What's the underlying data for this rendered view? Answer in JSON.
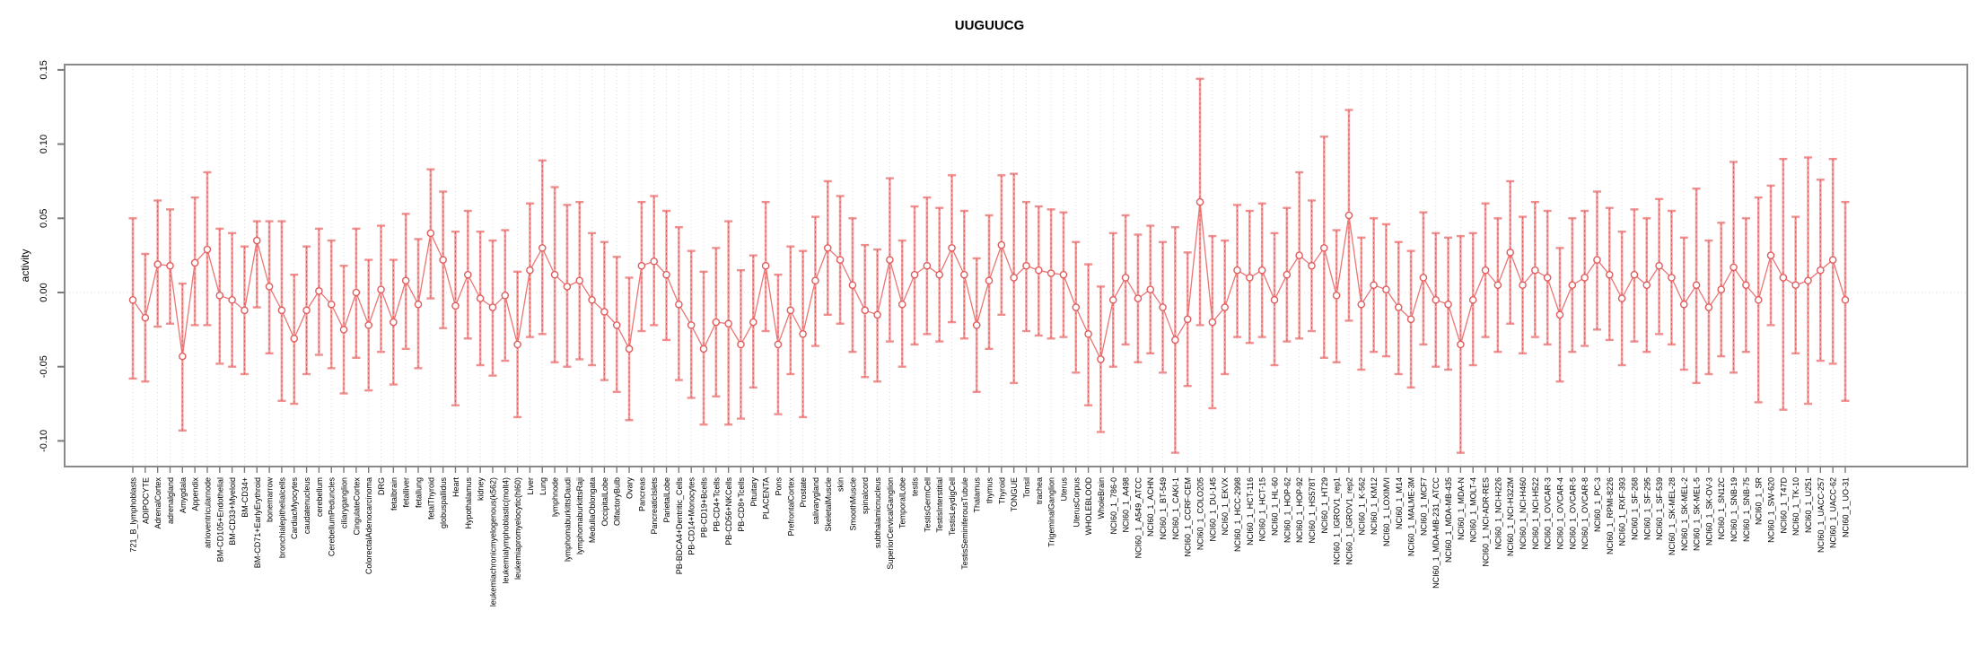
{
  "chart_data": {
    "type": "line",
    "title": "UUGUUCG",
    "xlabel": "",
    "ylabel": "activity",
    "ylim": [
      -0.118,
      0.155
    ],
    "grid": "dotted vertical gridline per category; dotted horizontal line at 0",
    "legend": "none",
    "error_bars": true,
    "point_format": [
      "label",
      "value",
      "lo",
      "hi"
    ],
    "yticks": [
      {
        "v": 0.15,
        "label": "0.15"
      },
      {
        "v": 0.1,
        "label": "0.10"
      },
      {
        "v": 0.05,
        "label": "0.05"
      },
      {
        "v": 0.0,
        "label": "0.00"
      },
      {
        "v": -0.05,
        "label": "-0.05"
      },
      {
        "v": -0.1,
        "label": "-0.10"
      }
    ],
    "points": [
      [
        "721_B_lymphoblasts",
        -0.005,
        -0.058,
        0.05
      ],
      [
        "ADIPOCYTE",
        -0.017,
        -0.06,
        0.026
      ],
      [
        "AdrenalCortex",
        0.019,
        -0.023,
        0.062
      ],
      [
        "adrenalgland",
        0.018,
        -0.021,
        0.056
      ],
      [
        "Amygdala",
        -0.043,
        -0.093,
        0.006
      ],
      [
        "Appendix",
        0.02,
        -0.022,
        0.064
      ],
      [
        "atrioventricularnode",
        0.029,
        -0.022,
        0.081
      ],
      [
        "BM-CD105+Endothelial",
        -0.002,
        -0.048,
        0.043
      ],
      [
        "BM-CD33+Myeloid",
        -0.005,
        -0.05,
        0.04
      ],
      [
        "BM-CD34+",
        -0.012,
        -0.055,
        0.031
      ],
      [
        "BM-CD71+EarlyErythroid",
        0.035,
        -0.01,
        0.048
      ],
      [
        "bonemarrow",
        0.004,
        -0.041,
        0.048
      ],
      [
        "bronchialepithelialcells",
        -0.012,
        -0.073,
        0.048
      ],
      [
        "CardiacMyocytes",
        -0.031,
        -0.075,
        0.012
      ],
      [
        "caudatenucleus",
        -0.012,
        -0.055,
        0.031
      ],
      [
        "cerebellum",
        0.001,
        -0.042,
        0.043
      ],
      [
        "CerebellumPeduncles",
        -0.008,
        -0.051,
        0.035
      ],
      [
        "ciliaryganglion",
        -0.025,
        -0.068,
        0.018
      ],
      [
        "CingulateCortex",
        0.0,
        -0.044,
        0.043
      ],
      [
        "ColorectalAdenocarcinoma",
        -0.022,
        -0.066,
        0.022
      ],
      [
        "DRG",
        0.002,
        -0.04,
        0.045
      ],
      [
        "fetalbrain",
        -0.02,
        -0.062,
        0.022
      ],
      [
        "fetalliver",
        0.008,
        -0.038,
        0.053
      ],
      [
        "fetallung",
        -0.008,
        -0.051,
        0.036
      ],
      [
        "fetalThyroid",
        0.04,
        -0.004,
        0.083
      ],
      [
        "globuspallidus",
        0.022,
        -0.024,
        0.068
      ],
      [
        "Heart",
        -0.009,
        -0.076,
        0.041
      ],
      [
        "Hypothalamus",
        0.012,
        -0.031,
        0.055
      ],
      [
        "kidney",
        -0.004,
        -0.049,
        0.041
      ],
      [
        "leukemiachronicmyelogenous(k562)",
        -0.01,
        -0.056,
        0.035
      ],
      [
        "leukemialymphoblastic(molt4)",
        -0.002,
        -0.046,
        0.042
      ],
      [
        "leukemiapromyelocytic(hl60)",
        -0.035,
        -0.084,
        0.014
      ],
      [
        "Liver",
        0.015,
        -0.03,
        0.06
      ],
      [
        "Lung",
        0.03,
        -0.028,
        0.089
      ],
      [
        "lymphnode",
        0.012,
        -0.047,
        0.071
      ],
      [
        "lymphomaburkittsDaudi",
        0.004,
        -0.05,
        0.059
      ],
      [
        "lymphomaburkittsRaji",
        0.008,
        -0.045,
        0.061
      ],
      [
        "MedullaOblongata",
        -0.005,
        -0.049,
        0.04
      ],
      [
        "OccipitalLobe",
        -0.013,
        -0.059,
        0.034
      ],
      [
        "OlfactoryBulb",
        -0.022,
        -0.067,
        0.024
      ],
      [
        "Ovary",
        -0.038,
        -0.086,
        0.01
      ],
      [
        "Pancreas",
        0.018,
        -0.026,
        0.061
      ],
      [
        "PancreaticIslets",
        0.021,
        -0.022,
        0.065
      ],
      [
        "ParietalLobe",
        0.012,
        -0.032,
        0.055
      ],
      [
        "PB-BDCA4+Dentritic_Cells",
        -0.008,
        -0.059,
        0.044
      ],
      [
        "PB-CD14+Monocytes",
        -0.022,
        -0.071,
        0.028
      ],
      [
        "PB-CD19+Bcells",
        -0.038,
        -0.089,
        0.014
      ],
      [
        "PB-CD4+Tcells",
        -0.02,
        -0.07,
        0.03
      ],
      [
        "PB-CD56+NKCells",
        -0.021,
        -0.089,
        0.048
      ],
      [
        "PB-CD8+Tcells",
        -0.035,
        -0.085,
        0.015
      ],
      [
        "Pituitary",
        -0.02,
        -0.064,
        0.025
      ],
      [
        "PLACENTA",
        0.018,
        -0.026,
        0.061
      ],
      [
        "Pons",
        -0.035,
        -0.082,
        0.012
      ],
      [
        "PrefrontalCortex",
        -0.012,
        -0.055,
        0.031
      ],
      [
        "Prostate",
        -0.028,
        -0.084,
        0.028
      ],
      [
        "salivarygland",
        0.008,
        -0.036,
        0.051
      ],
      [
        "SkeletalMuscle",
        0.03,
        -0.015,
        0.075
      ],
      [
        "skin",
        0.022,
        -0.021,
        0.065
      ],
      [
        "SmoothMuscle",
        0.005,
        -0.04,
        0.05
      ],
      [
        "spinalcord",
        -0.012,
        -0.057,
        0.032
      ],
      [
        "subthalamicnucleus",
        -0.015,
        -0.06,
        0.029
      ],
      [
        "SuperiorCervicalGanglion",
        0.022,
        -0.033,
        0.077
      ],
      [
        "TemporalLobe",
        -0.008,
        -0.05,
        0.035
      ],
      [
        "testis",
        0.012,
        -0.035,
        0.058
      ],
      [
        "TestisGermCell",
        0.018,
        -0.028,
        0.064
      ],
      [
        "TestisInterstitial",
        0.012,
        -0.033,
        0.057
      ],
      [
        "TestisLeydigCell",
        0.03,
        -0.02,
        0.079
      ],
      [
        "TestisSeminiferousTubule",
        0.012,
        -0.031,
        0.055
      ],
      [
        "Thalamus",
        -0.022,
        -0.067,
        0.023
      ],
      [
        "thymus",
        0.008,
        -0.038,
        0.052
      ],
      [
        "Thyroid",
        0.032,
        -0.015,
        0.079
      ],
      [
        "TONGUE",
        0.01,
        -0.061,
        0.08
      ],
      [
        "Tonsil",
        0.018,
        -0.026,
        0.061
      ],
      [
        "trachea",
        0.015,
        -0.029,
        0.058
      ],
      [
        "TrigeminalGanglion",
        0.013,
        -0.031,
        0.056
      ],
      [
        "Uterus",
        0.012,
        -0.03,
        0.054
      ],
      [
        "UterusCorpus",
        -0.01,
        -0.054,
        0.034
      ],
      [
        "WHOLEBLOOD",
        -0.028,
        -0.076,
        0.019
      ],
      [
        "WholeBrain",
        -0.045,
        -0.094,
        0.004
      ],
      [
        "NCI60_1_786-0",
        -0.005,
        -0.05,
        0.04
      ],
      [
        "NCI60_1_A498",
        0.01,
        -0.035,
        0.052
      ],
      [
        "NCI60_1_A549_ATCC",
        -0.004,
        -0.047,
        0.039
      ],
      [
        "NCI60_1_ACHN",
        0.002,
        -0.041,
        0.045
      ],
      [
        "NCI60_1_BT-549",
        -0.01,
        -0.054,
        0.034
      ],
      [
        "NCI60_1_CAKI-1",
        -0.032,
        -0.108,
        0.044
      ],
      [
        "NCI60_1_CCRF-CEM",
        -0.018,
        -0.063,
        0.027
      ],
      [
        "NCI60_1_COLO205",
        0.061,
        -0.022,
        0.144
      ],
      [
        "NCI60_1_DU-145",
        -0.02,
        -0.078,
        0.038
      ],
      [
        "NCI60_1_EKVX",
        -0.01,
        -0.055,
        0.035
      ],
      [
        "NCI60_1_HCC-2998",
        0.015,
        -0.03,
        0.059
      ],
      [
        "NCI60_1_HCT-116",
        0.01,
        -0.034,
        0.055
      ],
      [
        "NCI60_1_HCT-15",
        0.015,
        -0.03,
        0.06
      ],
      [
        "NCI60_1_HL-60",
        -0.005,
        -0.049,
        0.04
      ],
      [
        "NCI60_1_HOP-62",
        0.012,
        -0.033,
        0.057
      ],
      [
        "NCI60_1_HOP-92",
        0.025,
        -0.031,
        0.081
      ],
      [
        "NCI60_1_HS578T",
        0.018,
        -0.026,
        0.062
      ],
      [
        "NCI60_1_HT29",
        0.03,
        -0.044,
        0.105
      ],
      [
        "NCI60_1_IGROV1_rep1",
        -0.002,
        -0.047,
        0.042
      ],
      [
        "NCI60_1_IGROV1_rep2",
        0.052,
        -0.019,
        0.123
      ],
      [
        "NCI60_1_K-562",
        -0.008,
        -0.052,
        0.037
      ],
      [
        "NCI60_1_KM12",
        0.005,
        -0.04,
        0.05
      ],
      [
        "NCI60_1_LOXIMVI",
        0.002,
        -0.043,
        0.046
      ],
      [
        "NCI60_1_M14",
        -0.01,
        -0.055,
        0.034
      ],
      [
        "NCI60_1_MALME-3M",
        -0.018,
        -0.064,
        0.028
      ],
      [
        "NCI60_1_MCF7",
        0.01,
        -0.035,
        0.054
      ],
      [
        "NCI60_1_MDA-MB-231_ATCC",
        -0.005,
        -0.05,
        0.04
      ],
      [
        "NCI60_1_MDA-MB-435",
        -0.008,
        -0.052,
        0.037
      ],
      [
        "NCI60_1_MDA-N",
        -0.035,
        -0.108,
        0.038
      ],
      [
        "NCI60_1_MOLT-4",
        -0.005,
        -0.049,
        0.04
      ],
      [
        "NCI60_1_NCI-ADR-RES",
        0.015,
        -0.03,
        0.06
      ],
      [
        "NCI60_1_NCI-H226",
        0.005,
        -0.04,
        0.05
      ],
      [
        "NCI60_1_NCI-H322M",
        0.027,
        -0.021,
        0.075
      ],
      [
        "NCI60_1_NCI-H460",
        0.005,
        -0.041,
        0.051
      ],
      [
        "NCI60_1_NCI-H522",
        0.015,
        -0.03,
        0.061
      ],
      [
        "NCI60_1_OVCAR-3",
        0.01,
        -0.035,
        0.055
      ],
      [
        "NCI60_1_OVCAR-4",
        -0.015,
        -0.06,
        0.03
      ],
      [
        "NCI60_1_OVCAR-5",
        0.005,
        -0.04,
        0.05
      ],
      [
        "NCI60_1_OVCAR-8",
        0.01,
        -0.036,
        0.055
      ],
      [
        "NCI60_1_PC-3",
        0.022,
        -0.025,
        0.068
      ],
      [
        "NCI60_1_RPMI-8226",
        0.012,
        -0.032,
        0.057
      ],
      [
        "NCI60_1_RXF-393",
        -0.004,
        -0.049,
        0.041
      ],
      [
        "NCI60_1_SF-268",
        0.012,
        -0.033,
        0.056
      ],
      [
        "NCI60_1_SF-295",
        0.005,
        -0.04,
        0.05
      ],
      [
        "NCI60_1_SF-539",
        0.018,
        -0.028,
        0.063
      ],
      [
        "NCI60_1_SK-MEL-28",
        0.01,
        -0.035,
        0.055
      ],
      [
        "NCI60_1_SK-MEL-2",
        -0.008,
        -0.052,
        0.037
      ],
      [
        "NCI60_1_SK-MEL-5",
        0.005,
        -0.061,
        0.07
      ],
      [
        "NCI60_1_SK-OV-3",
        -0.01,
        -0.055,
        0.035
      ],
      [
        "NCI60_1_SN12C",
        0.002,
        -0.043,
        0.047
      ],
      [
        "NCI60_1_SNB-19",
        0.017,
        -0.054,
        0.088
      ],
      [
        "NCI60_1_SNB-75",
        0.005,
        -0.04,
        0.05
      ],
      [
        "NCI60_1_SR",
        -0.005,
        -0.074,
        0.064
      ],
      [
        "NCI60_1_SW-620",
        0.025,
        -0.022,
        0.072
      ],
      [
        "NCI60_1_T47D",
        0.01,
        -0.079,
        0.09
      ],
      [
        "NCI60_1_TK-10",
        0.005,
        -0.041,
        0.051
      ],
      [
        "NCI60_1_U251",
        0.008,
        -0.075,
        0.091
      ],
      [
        "NCI60_1_UACC-257",
        0.015,
        -0.046,
        0.076
      ],
      [
        "NCI60_1_UACC-62",
        0.022,
        -0.048,
        0.09
      ],
      [
        "NCI60_1_UO-31",
        -0.005,
        -0.073,
        0.061
      ]
    ]
  },
  "colors": {
    "axis_box": "#8a8a8a",
    "tick": "#7a7a7a",
    "text": "#000000",
    "gridline": "#dcdcdc",
    "zero_line": "#d6d6d6",
    "errorbar_light": "#f4a3a3",
    "errorbar_dark": "#e25c5c",
    "cap": "#ef8f8f",
    "series_line": "#ec7575",
    "marker_stroke": "#e25c5c",
    "marker_fill": "#ffffff",
    "background": "#ffffff"
  }
}
